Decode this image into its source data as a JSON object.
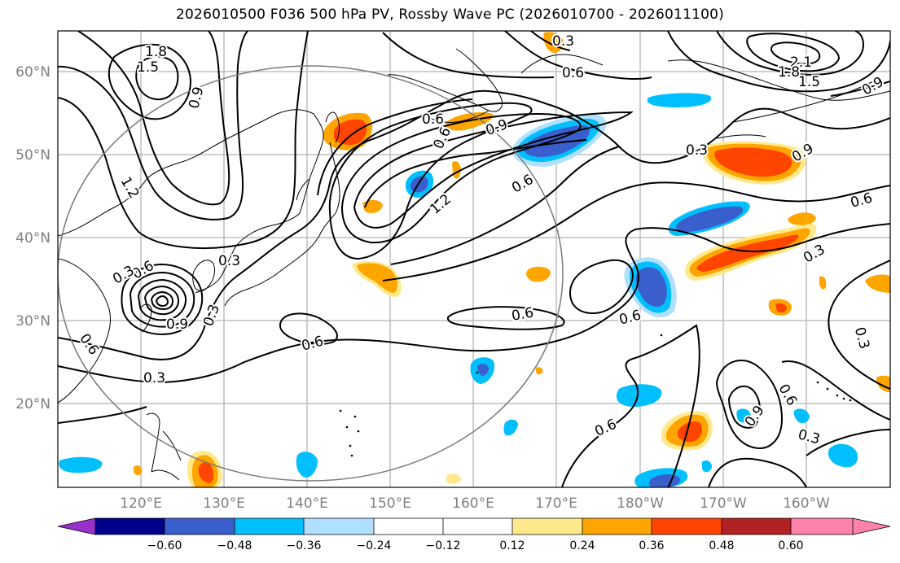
{
  "title": "2026010500 F036 500 hPa PV, Rossby Wave PC (2026010700 - 2026011100)",
  "lat_labels": [
    "60°N",
    "50°N",
    "40°N",
    "30°N",
    "20°N"
  ],
  "lon_labels": [
    "120°E",
    "130°E",
    "140°E",
    "150°E",
    "160°E",
    "170°E",
    "180°W",
    "170°W",
    "160°W"
  ],
  "colorbar": {
    "tick_labels": [
      "−0.60",
      "−0.48",
      "−0.36",
      "−0.24",
      "−0.12",
      "0.12",
      "0.24",
      "0.36",
      "0.48",
      "0.60"
    ],
    "colors": [
      "#9932cc",
      "#00008b",
      "#3a5fcd",
      "#00bfff",
      "#b0e0ff",
      "#ffffff",
      "#ffe98c",
      "#ffa500",
      "#ff4500",
      "#b22222",
      "#ff82ab"
    ]
  },
  "pv_contour_labels": {
    "l18": "1.8",
    "l15a": "1.5",
    "l09a": "0.9",
    "l12a": "1.2",
    "l03top": "0.3",
    "l06top": "0.6",
    "l21": "2.1",
    "l18b": "1.8",
    "l15b": "1.5",
    "l09ne": "0.9",
    "l06a": "0.6",
    "l06b": "0.6",
    "l09b": "0.9",
    "l06c": "0.6",
    "l12b": "1.2",
    "l03a": "0.3",
    "l09c": "0.9",
    "l06d": "0.6",
    "l03b": "0.3",
    "l06e": "0.6",
    "l03c": "0.3",
    "l09d": "0.9",
    "l03d": "0.3",
    "l06f": "0.6",
    "l06g": "0.6",
    "l06h": "0.6",
    "l06i": "0.6",
    "l03e": "0.3",
    "l06j": "0.6",
    "l03f": "0.3",
    "l06k": "0.6",
    "l09e": "0.9",
    "l03g": "0.3",
    "l03h": "0.3"
  }
}
